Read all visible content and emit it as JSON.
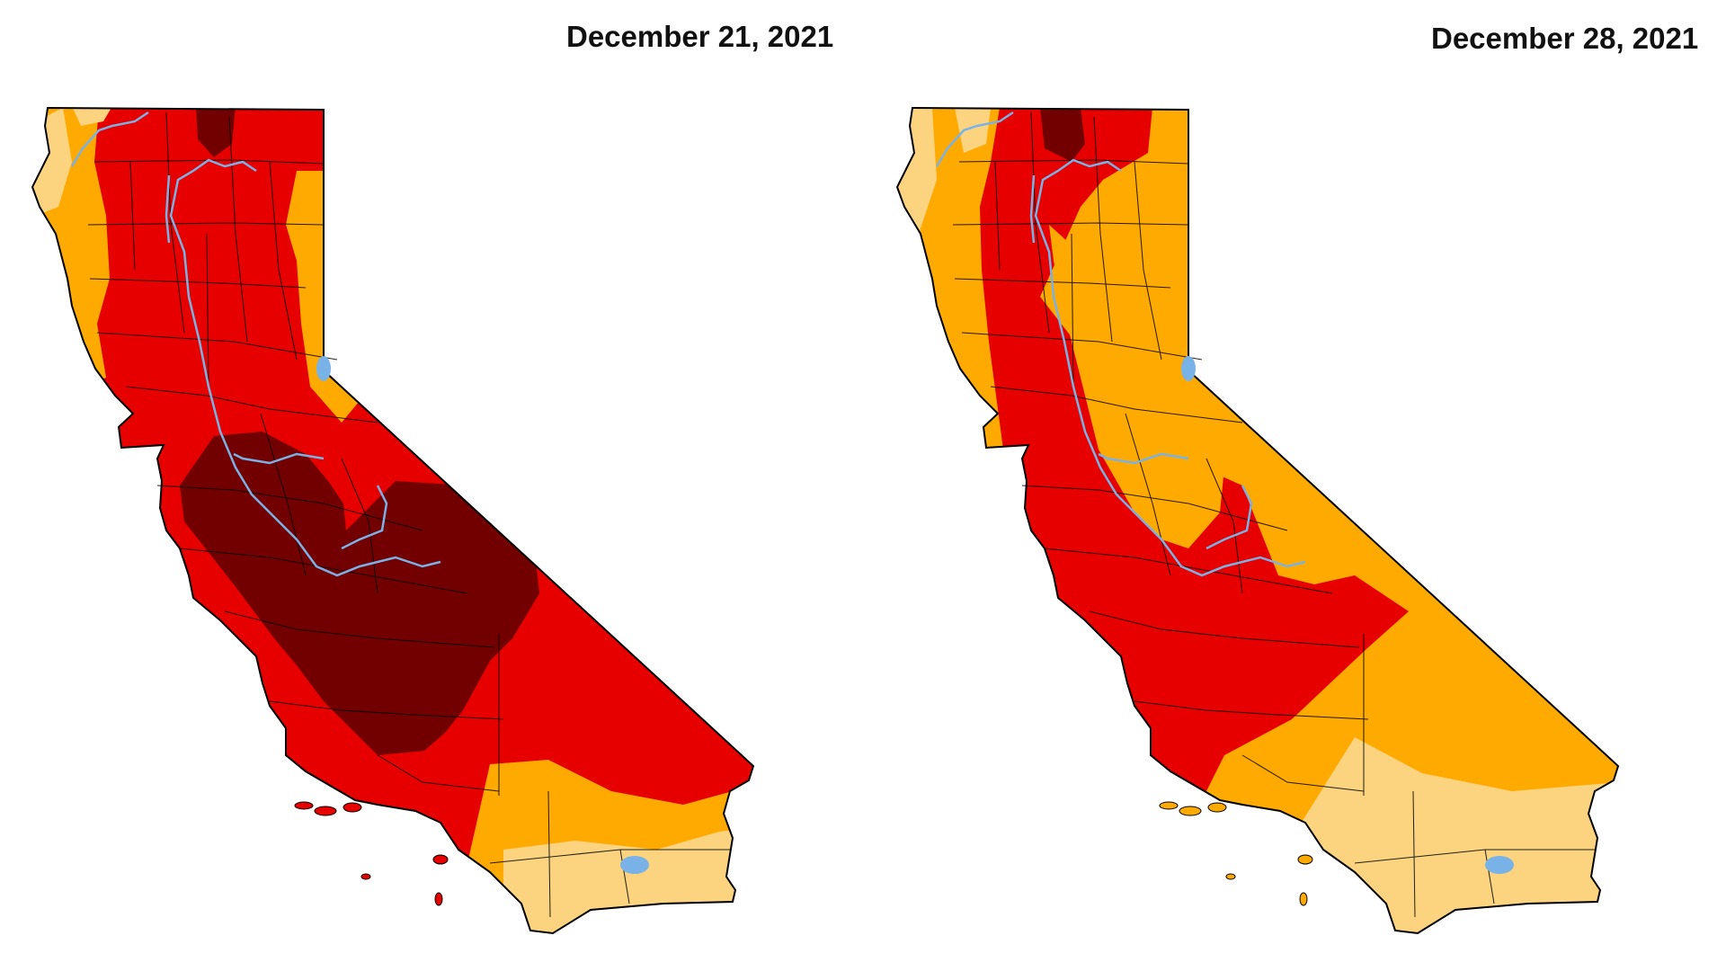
{
  "maps": [
    {
      "date": "December 21, 2021",
      "state": "California",
      "depicted_categories": [
        "D1",
        "D2",
        "D3",
        "D4"
      ]
    },
    {
      "date": "December 28, 2021",
      "state": "California",
      "depicted_categories": [
        "D1",
        "D2",
        "D3",
        "D4"
      ]
    }
  ],
  "palette": {
    "D1": "#fcd37f",
    "D2": "#ffaa00",
    "D3": "#e60000",
    "D4": "#730000",
    "water": "#79b2e6",
    "county_border": "#000000",
    "background": "#ffffff"
  }
}
